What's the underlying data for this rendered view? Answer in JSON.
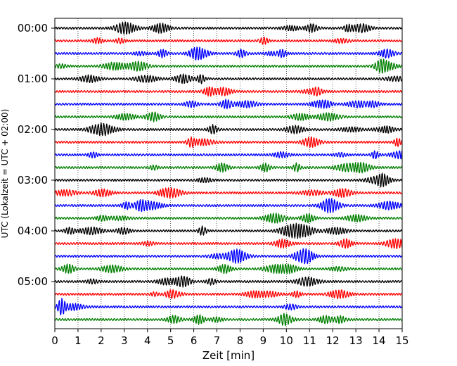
{
  "chart_data": {
    "type": "line",
    "title": "",
    "xlabel": "Zeit  [min]",
    "ylabel": "UTC (Lokalzeit = UTC + 02:00)",
    "xlim": [
      0,
      15
    ],
    "x_ticks": [
      0,
      1,
      2,
      3,
      4,
      5,
      6,
      7,
      8,
      9,
      10,
      11,
      12,
      13,
      14,
      15
    ],
    "y_ticks": [
      "00:00",
      "01:00",
      "02:00",
      "03:00",
      "04:00",
      "05:00"
    ],
    "grid": "vertical dotted",
    "trace_interval_min": 15,
    "trace_count": 24,
    "trace_colors": [
      "#000000",
      "#ff0000",
      "#0000ff",
      "#008000"
    ],
    "traces": [
      {
        "start": "00:00"
      },
      {
        "start": "00:15"
      },
      {
        "start": "00:30"
      },
      {
        "start": "00:45"
      },
      {
        "start": "01:00"
      },
      {
        "start": "01:15"
      },
      {
        "start": "01:30"
      },
      {
        "start": "01:45"
      },
      {
        "start": "02:00"
      },
      {
        "start": "02:15"
      },
      {
        "start": "02:30"
      },
      {
        "start": "02:45"
      },
      {
        "start": "03:00"
      },
      {
        "start": "03:15"
      },
      {
        "start": "03:30"
      },
      {
        "start": "03:45"
      },
      {
        "start": "04:00"
      },
      {
        "start": "04:15"
      },
      {
        "start": "04:30"
      },
      {
        "start": "04:45"
      },
      {
        "start": "05:00"
      },
      {
        "start": "05:15"
      },
      {
        "start": "05:30"
      },
      {
        "start": "05:45"
      }
    ]
  }
}
